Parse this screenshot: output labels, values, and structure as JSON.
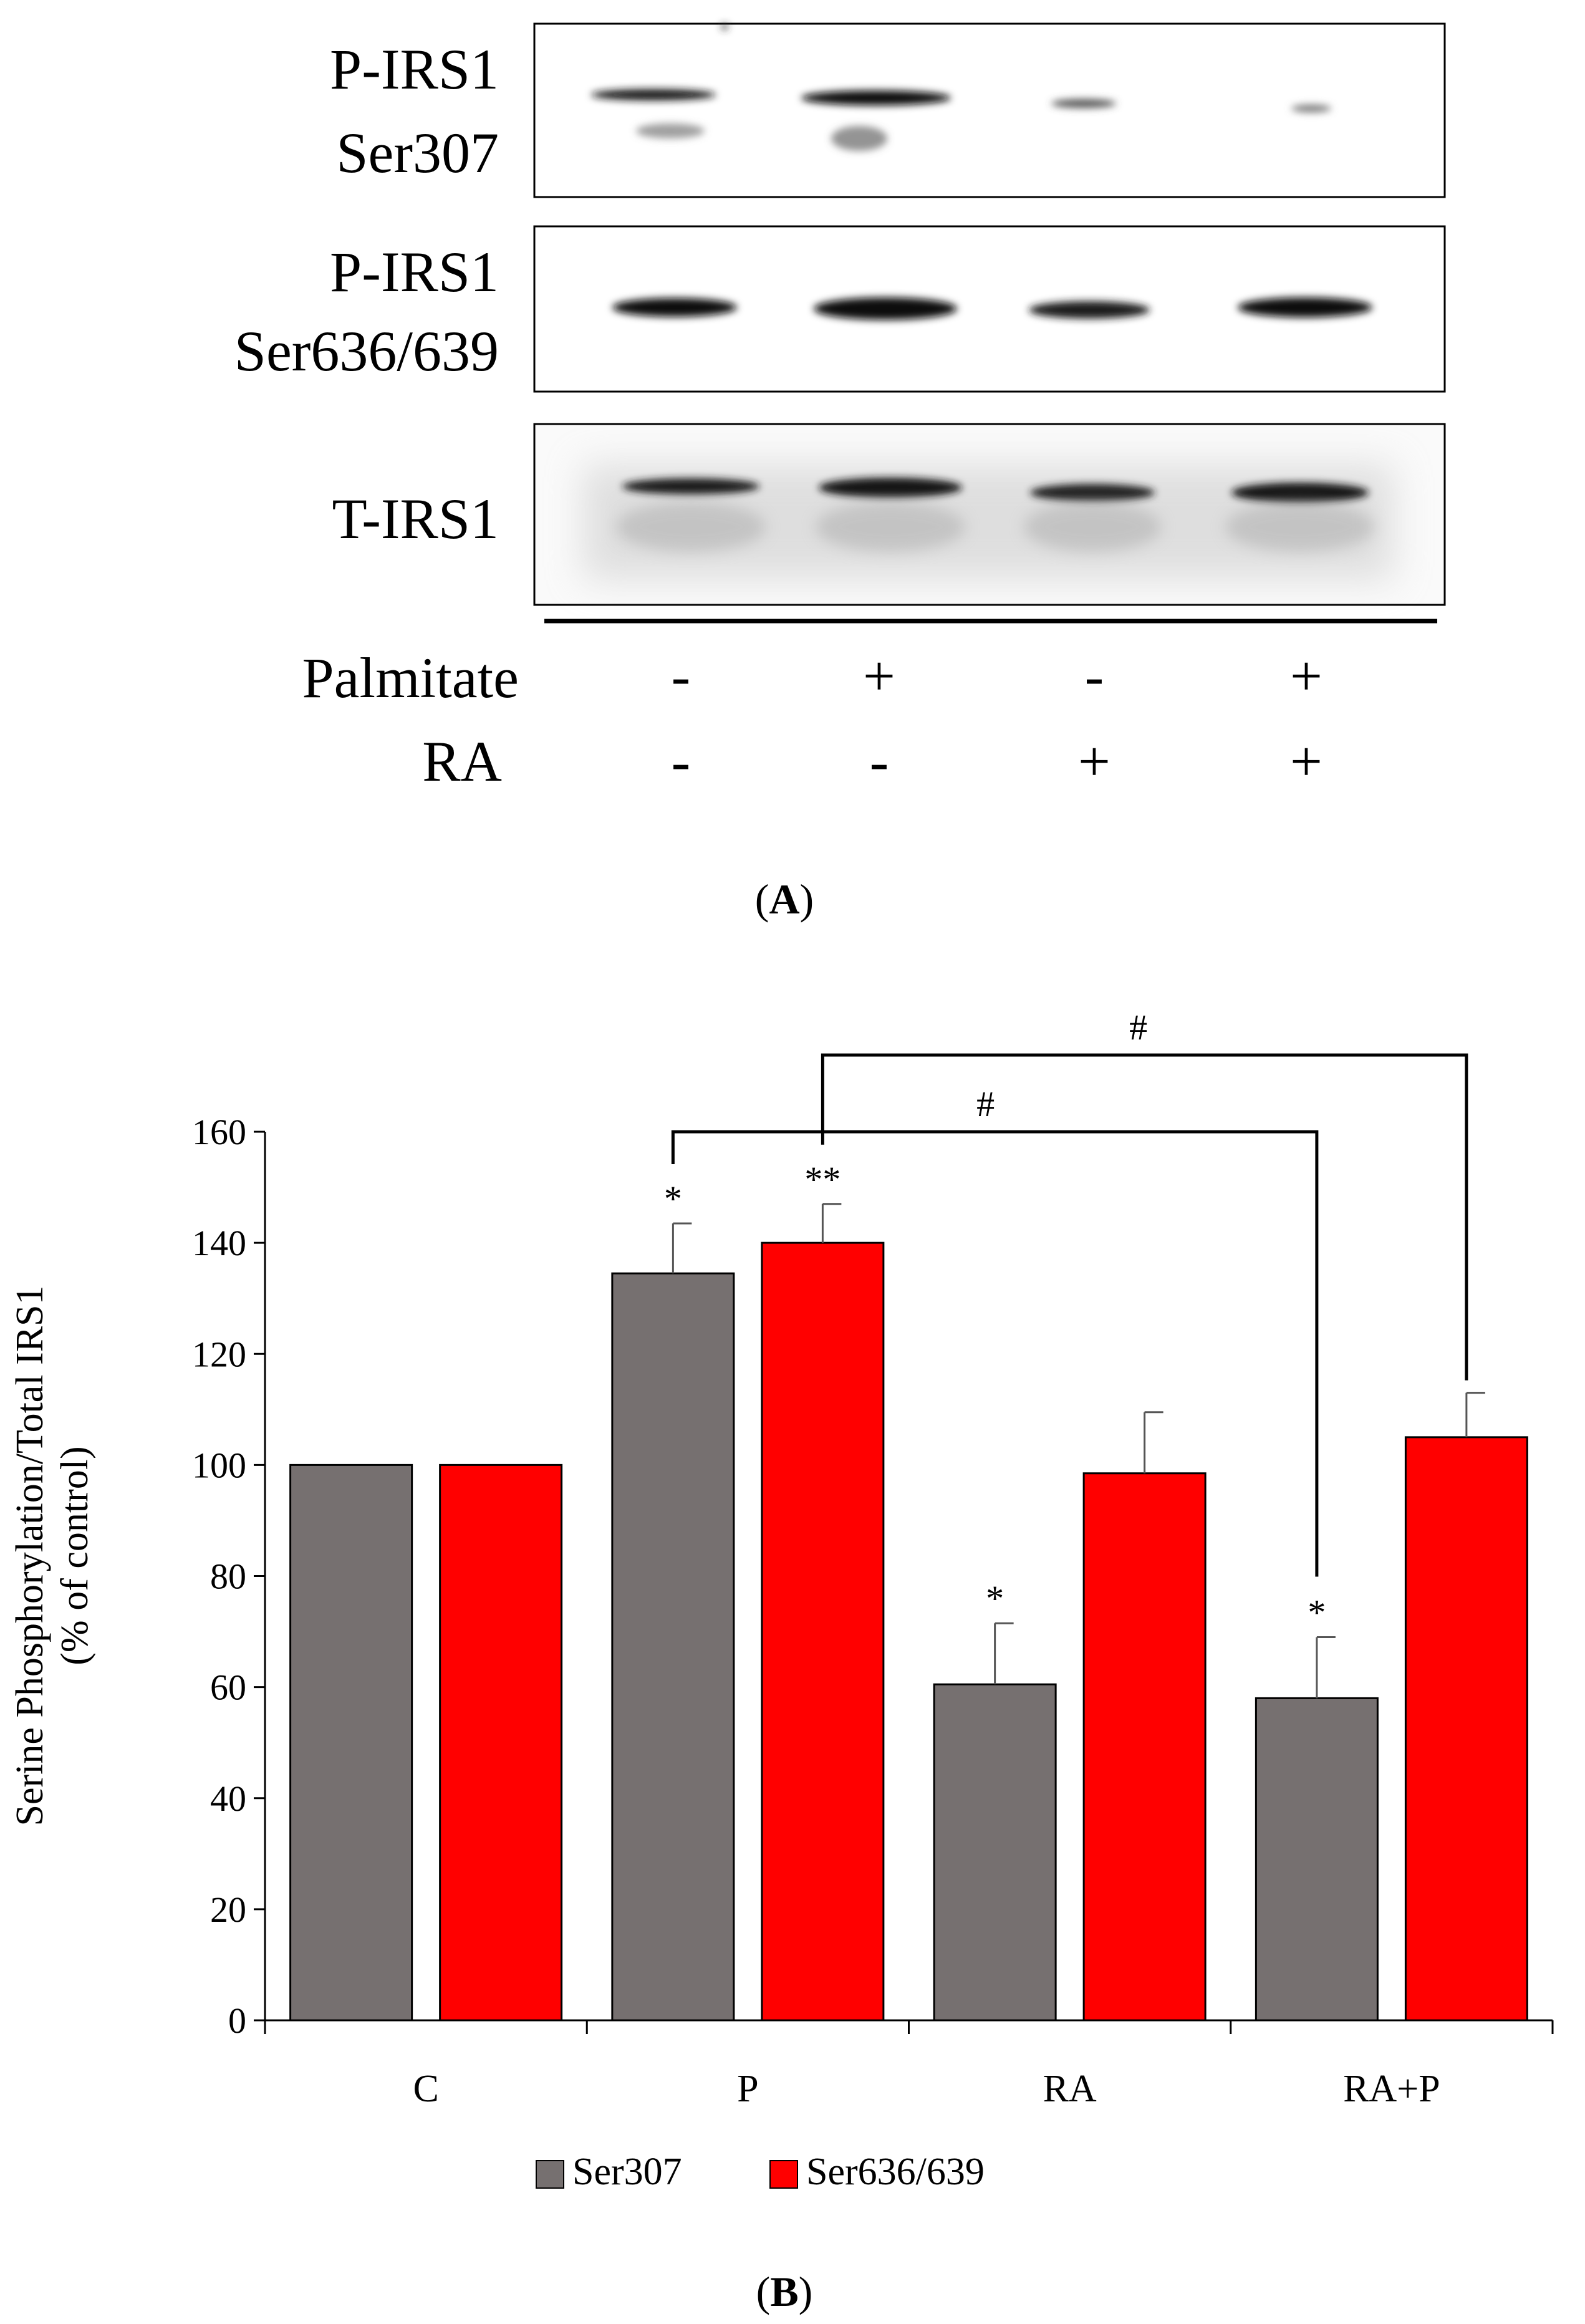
{
  "panel_a": {
    "blots": [
      {
        "label_lines": [
          "P-IRS1",
          "Ser307"
        ]
      },
      {
        "label_lines": [
          "P-IRS1",
          "Ser636/639"
        ]
      },
      {
        "label_lines": [
          "T-IRS1"
        ]
      }
    ],
    "treatments": [
      {
        "label": "Palmitate",
        "signs": [
          "-",
          "+",
          "-",
          "+"
        ]
      },
      {
        "label": "RA",
        "signs": [
          "-",
          "-",
          "+",
          "+"
        ]
      }
    ],
    "caption_letter": "A",
    "caption_open": "(",
    "caption_close": ")"
  },
  "chart_data": {
    "type": "bar",
    "categories": [
      "C",
      "P",
      "RA",
      "RA+P"
    ],
    "series": [
      {
        "name": "Ser307",
        "color": "#767070",
        "values": [
          100,
          134.5,
          60.5,
          58
        ],
        "errors": [
          0,
          9,
          11,
          11
        ]
      },
      {
        "name": "Ser636/639",
        "color": "#ff0000",
        "values": [
          100,
          140,
          98.5,
          105
        ],
        "errors": [
          0,
          7,
          11,
          8
        ]
      }
    ],
    "ylabel_lines": [
      "Serine Phosphorylation/Total IRS1",
      "(% of control)"
    ],
    "xlabel": "",
    "ylim": [
      0,
      160
    ],
    "yticks": [
      0,
      20,
      40,
      60,
      80,
      100,
      120,
      140,
      160
    ],
    "significance": [
      {
        "category": "P",
        "series": 0,
        "text": "*"
      },
      {
        "category": "P",
        "series": 1,
        "text": "**"
      },
      {
        "category": "RA",
        "series": 0,
        "text": "*"
      },
      {
        "category": "RA+P",
        "series": 0,
        "text": "*"
      }
    ],
    "brackets": [
      {
        "from": {
          "category": "P",
          "series": 0
        },
        "to": {
          "category": "RA+P",
          "series": 0
        },
        "text": "#"
      },
      {
        "from": {
          "category": "P",
          "series": 1
        },
        "to": {
          "category": "RA+P",
          "series": 1
        },
        "text": "#"
      }
    ],
    "legend_position": "bottom",
    "caption_letter": "B",
    "caption_open": "(",
    "caption_close": ")"
  }
}
